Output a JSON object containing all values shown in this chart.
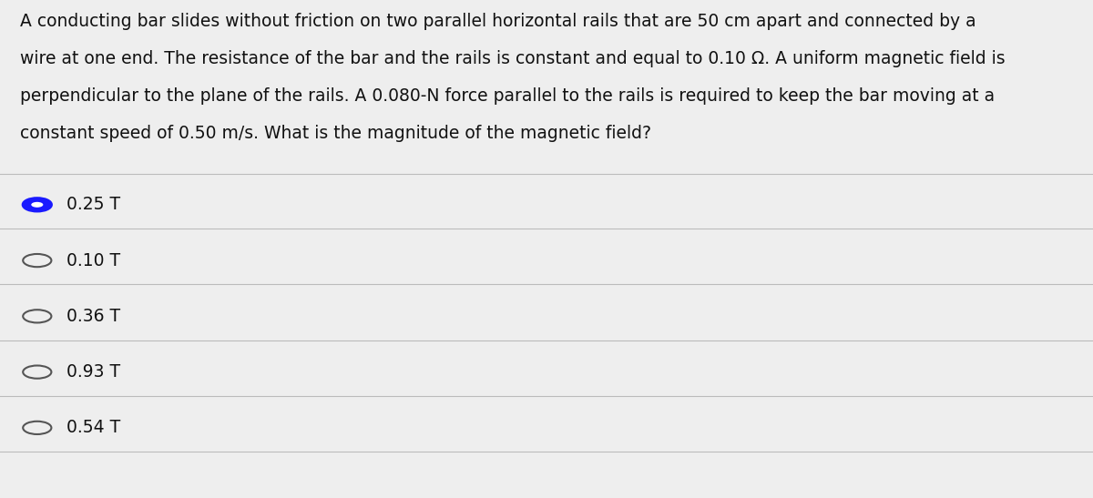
{
  "question_text": "A conducting bar slides without friction on two parallel horizontal rails that are 50 cm apart and connected by a\nwire at one end. The resistance of the bar and the rails is constant and equal to 0.10 Ω. A uniform magnetic field is\nperpendicular to the plane of the rails. A 0.080-N force parallel to the rails is required to keep the bar moving at a\nconstant speed of 0.50 m/s. What is the magnitude of the magnetic field?",
  "options": [
    {
      "label": "0.25 T",
      "selected": true
    },
    {
      "label": "0.10 T",
      "selected": false
    },
    {
      "label": "0.36 T",
      "selected": false
    },
    {
      "label": "0.93 T",
      "selected": false
    },
    {
      "label": "0.54 T",
      "selected": false
    }
  ],
  "bg_color": "#eeeeee",
  "text_color": "#111111",
  "selected_color": "#1a1aff",
  "unselected_color": "#555555",
  "divider_color": "#bbbbbb",
  "font_size_question": 13.5,
  "font_size_options": 13.5
}
